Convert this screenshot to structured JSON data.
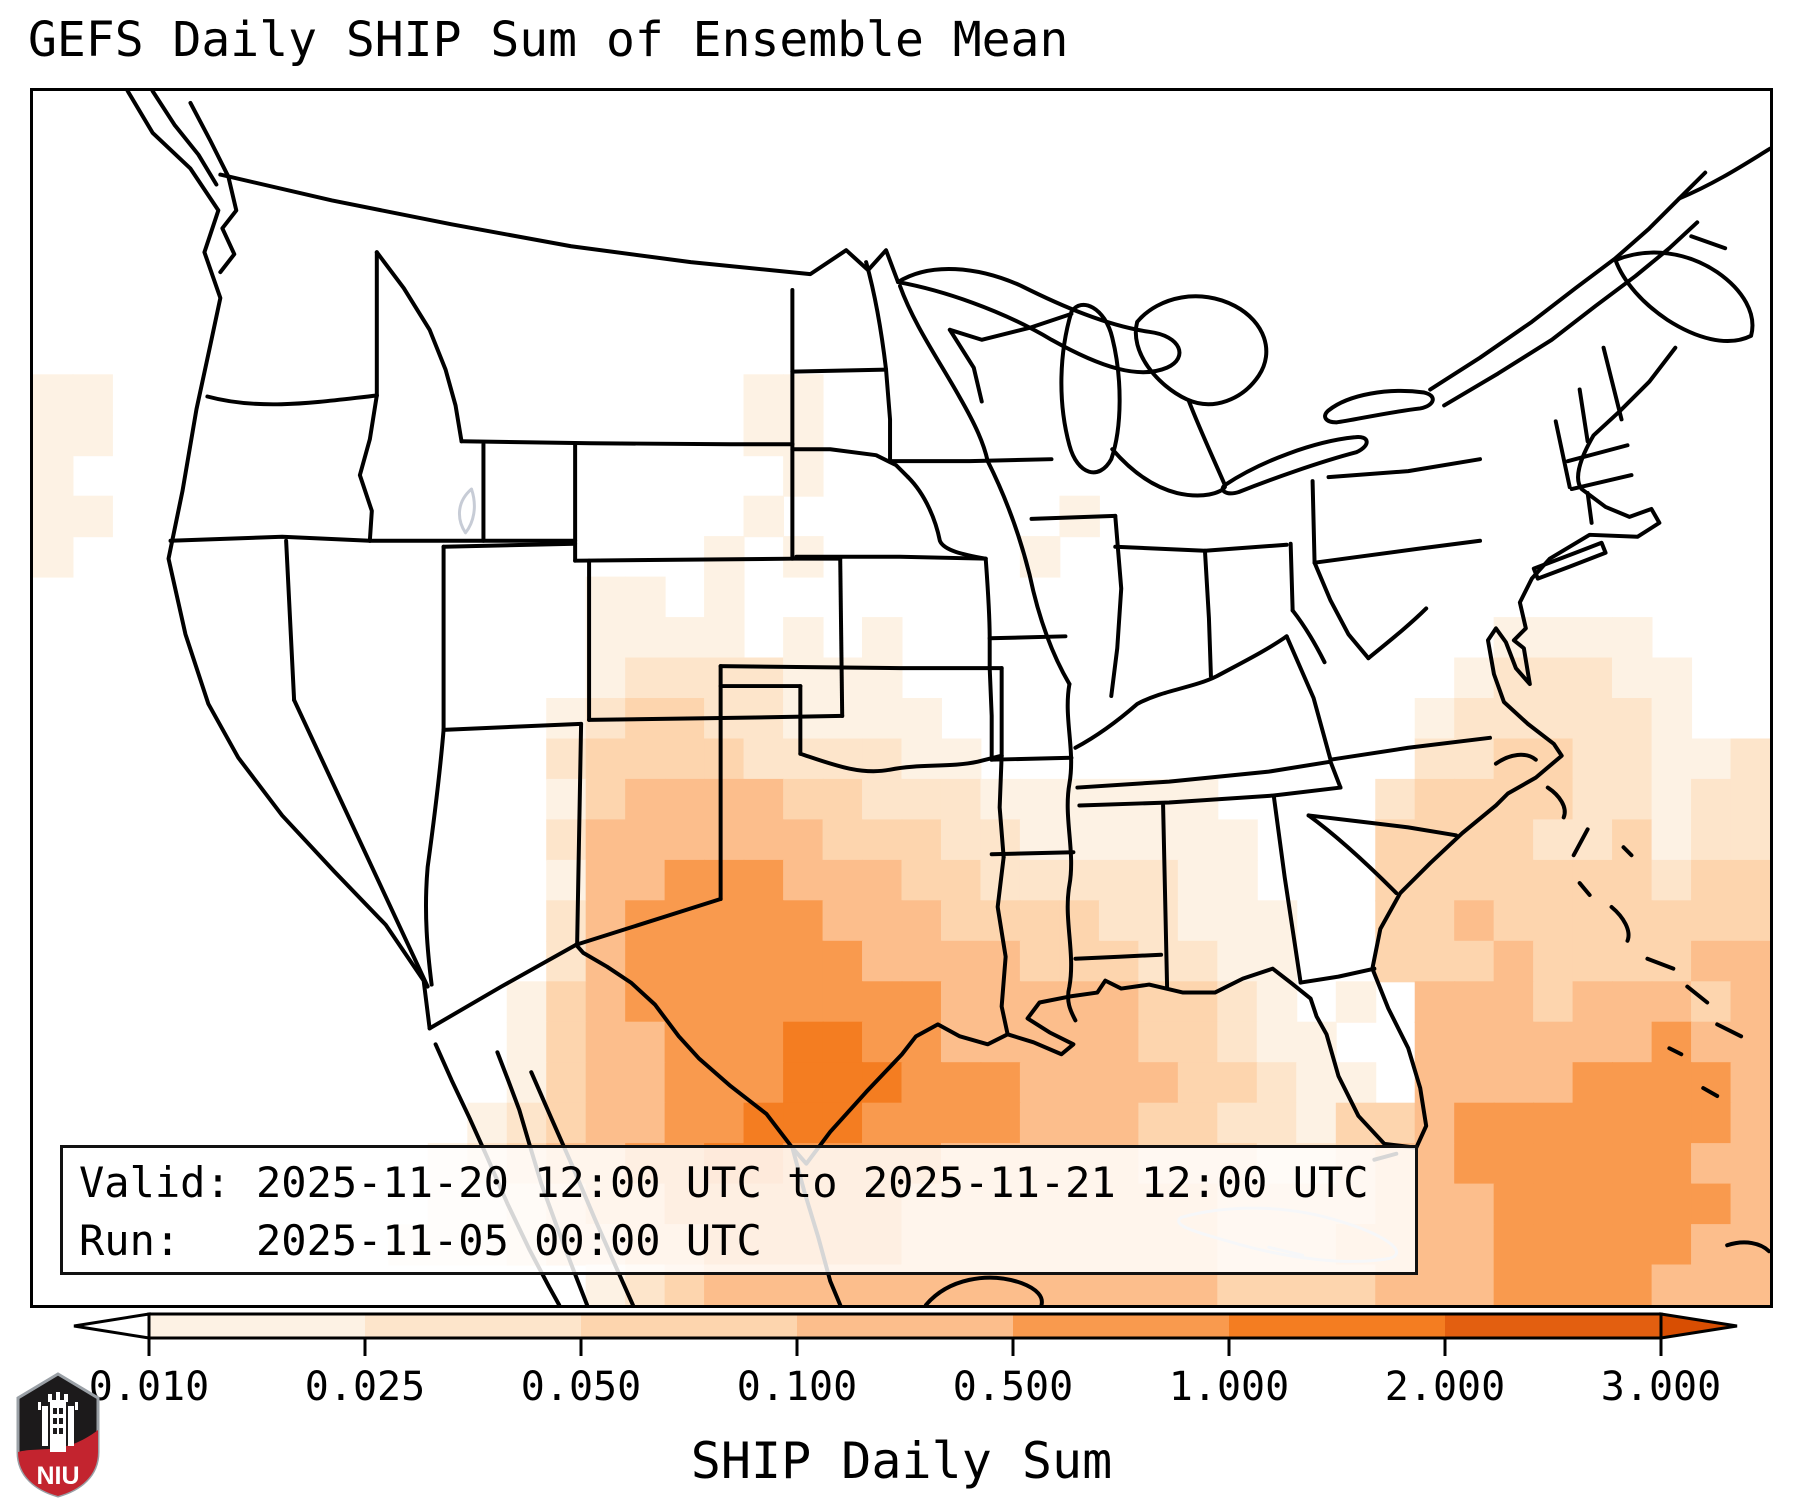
{
  "title": "GEFS Daily SHIP Sum of Ensemble Mean",
  "info_box": {
    "valid_line": "Valid: 2025-11-20 12:00 UTC to 2025-11-21 12:00 UTC",
    "run_line": "Run:   2025-11-05 00:00 UTC"
  },
  "colorbar": {
    "label": "SHIP Daily Sum",
    "tick_labels": [
      "0.010",
      "0.025",
      "0.050",
      "0.100",
      "0.500",
      "1.000",
      "2.000",
      "3.000"
    ],
    "segment_colors": [
      "#fdf2e4",
      "#fde5cb",
      "#fdd5ae",
      "#fcbe8c",
      "#f99a4e",
      "#f47d21",
      "#e35f10"
    ],
    "under_color": "#ffffff",
    "over_color": "#d84e02",
    "extend": "both"
  },
  "logo": {
    "text": "NIU",
    "shield_dark": "#1c1a1b",
    "shield_red": "#c3242f",
    "outline": "#9aa0a6"
  },
  "chart_data": {
    "type": "heatmap",
    "title": "GEFS Daily SHIP Sum of Ensemble Mean",
    "valid": "2025-11-20 12:00 UTC to 2025-11-21 12:00 UTC",
    "run": "2025-11-05 00:00 UTC",
    "colorbar_label": "SHIP Daily Sum",
    "levels": [
      0.01,
      0.025,
      0.05,
      0.1,
      0.5,
      1.0,
      2.0,
      3.0
    ],
    "legend_position": "bottom",
    "region": "CONUS (Lambert-style projection), maximum SHIP daily sum over Texas, the Gulf of Mexico and the western Atlantic/Caribbean",
    "palette": [
      "#ffffff",
      "#fdf2e4",
      "#fde5cb",
      "#fdd5ae",
      "#fcbe8c",
      "#f99a4e",
      "#f47d21",
      "#e35f10",
      "#d84e02"
    ],
    "grid_cols": 44,
    "grid_rows": 30,
    "grid": [
      "00000000000000000000000000000000000000000000",
      "00000000000000000000000000000000000000000000",
      "00000000000000000000000000000000000000000000",
      "00000000000000000000000000000000000000000000",
      "00000000000000000000000000000000000000000000",
      "00000000000000000000000000000000000000000000",
      "00000000000000000000000000000000000000000000",
      "11000000000000000011000000000000000000000000",
      "11000000000000000011000000000000000000000000",
      "10000000000000000001000000000000000000000000",
      "11000000000000000010000000100000000000000000",
      "10000000000000000101000001000000000000000000",
      "00000000000000110100000000000000000000000000",
      "00000000000000111101010000000000000001111000",
      "00000000000000122221110000000000000012221100",
      "00000000000001233221111000000000000122222100",
      "00000000000002333322221100000000000223322112",
      "00000000000001344443322211111100002333322122",
      "00000000000002444444333221111110003333223122",
      "00000000000001445554443322222110003333333233",
      "00000000000002455555444333322111003343333333",
      "00000000000002455555544443332211003334333344",
      "00000000000013455555555444443321010444344434",
      "00000000000013445556655444443321100444444544",
      "00000000000013445556665554444332110444455554",
      "00000000000123445566655554443322133455555554",
      "00000000001234455665555444443332234455555544",
      "00000000001123445555554444444433334445555554",
      "00000000011123344555554444444433344445555544",
      "00000000000000123444444444444433334445555444"
    ]
  }
}
